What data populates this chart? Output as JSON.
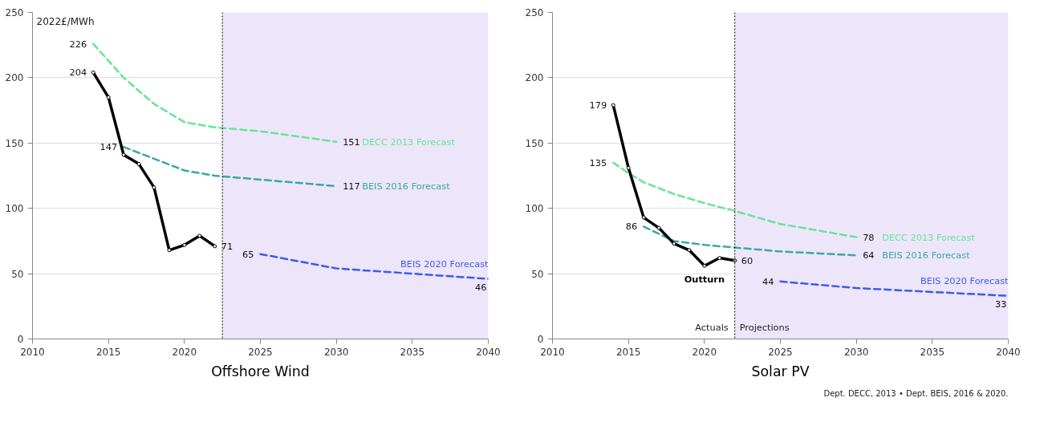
{
  "chart_data": [
    {
      "type": "line",
      "title": "Offshore Wind",
      "ylabel": "2022£/MWh",
      "xlim": [
        2010,
        2040
      ],
      "xticks": [
        2010,
        2015,
        2020,
        2025,
        2030,
        2035,
        2040
      ],
      "ylim": [
        0,
        250
      ],
      "yticks": [
        0,
        50,
        100,
        150,
        200,
        250
      ],
      "grid": "y",
      "series": [
        {
          "name": "DECC 2013 Forecast",
          "color": "#66e597",
          "line_style": "dashed",
          "marker": "none",
          "x": [
            2014,
            2016,
            2018,
            2020,
            2022,
            2025,
            2030
          ],
          "values": [
            226,
            200,
            180,
            166,
            162,
            159,
            151
          ],
          "value_labels": [
            "226",
            null,
            null,
            null,
            null,
            null,
            "151"
          ]
        },
        {
          "name": "BEIS 2016 Forecast",
          "color": "#38a8a8",
          "line_style": "dashed",
          "marker": "none",
          "x": [
            2016,
            2018,
            2020,
            2022,
            2025,
            2030
          ],
          "values": [
            147,
            138,
            129,
            125,
            122,
            117
          ],
          "value_labels": [
            "147",
            null,
            null,
            null,
            null,
            "117"
          ]
        },
        {
          "name": "BEIS 2020 Forecast",
          "color": "#3a5cf0",
          "line_style": "dashed",
          "marker": "none",
          "x": [
            2025,
            2030,
            2035,
            2040
          ],
          "values": [
            65,
            54,
            50,
            46
          ],
          "value_labels": [
            "65",
            null,
            null,
            "46"
          ]
        },
        {
          "color": "#000000",
          "line_style": "solid",
          "marker": "circle",
          "x": [
            2014,
            2015,
            2016,
            2017,
            2018,
            2019,
            2020,
            2021,
            2022
          ],
          "values": [
            204,
            185,
            141,
            134,
            116,
            68,
            72,
            79,
            71
          ],
          "value_labels": [
            "204",
            null,
            null,
            null,
            null,
            null,
            null,
            null,
            "71"
          ]
        }
      ],
      "bands": [
        {
          "axis": "x",
          "from": 2022.5,
          "to": 2040,
          "color": "#ede5fa"
        }
      ],
      "ref_lines": [
        {
          "axis": "x",
          "value": 2022.5,
          "color": "#000000",
          "line_style": "dotted"
        }
      ]
    },
    {
      "type": "line",
      "title": "Solar PV",
      "xlim": [
        2010,
        2040
      ],
      "xticks": [
        2010,
        2015,
        2020,
        2025,
        2030,
        2035,
        2040
      ],
      "ylim": [
        0,
        250
      ],
      "yticks": [
        0,
        50,
        100,
        150,
        200,
        250
      ],
      "grid": "y",
      "series": [
        {
          "name": "DECC 2013 Forecast",
          "color": "#66e597",
          "line_style": "dashed",
          "marker": "none",
          "x": [
            2014,
            2015,
            2016,
            2018,
            2020,
            2022,
            2025,
            2030
          ],
          "values": [
            135,
            127,
            120,
            111,
            104,
            98,
            88,
            78
          ],
          "value_labels": [
            "135",
            null,
            null,
            null,
            null,
            null,
            null,
            "78"
          ]
        },
        {
          "name": "BEIS 2016 Forecast",
          "color": "#38a8a8",
          "line_style": "dashed",
          "marker": "none",
          "x": [
            2016,
            2018,
            2020,
            2022,
            2025,
            2030
          ],
          "values": [
            86,
            75,
            72,
            70,
            67,
            64
          ],
          "value_labels": [
            "86",
            null,
            null,
            null,
            null,
            "64"
          ]
        },
        {
          "name": "BEIS 2020 Forecast",
          "color": "#3a5cf0",
          "line_style": "dashed",
          "marker": "none",
          "x": [
            2025,
            2030,
            2035,
            2040
          ],
          "values": [
            44,
            39,
            36,
            33
          ],
          "value_labels": [
            "44",
            null,
            null,
            "33"
          ]
        },
        {
          "name": "Outturn",
          "color": "#000000",
          "line_style": "solid",
          "marker": "circle",
          "x": [
            2014,
            2015,
            2016,
            2017,
            2018,
            2019,
            2020,
            2021,
            2022
          ],
          "values": [
            179,
            131,
            93,
            85,
            73,
            68,
            56,
            62,
            60
          ],
          "value_labels": [
            "179",
            null,
            null,
            null,
            null,
            null,
            null,
            null,
            "60"
          ]
        }
      ],
      "bands": [
        {
          "axis": "x",
          "from": 2022,
          "to": 2040,
          "color": "#ede5fa"
        }
      ],
      "ref_lines": [
        {
          "axis": "x",
          "value": 2022,
          "color": "#000000",
          "line_style": "dotted"
        }
      ],
      "annotations": [
        "Actuals",
        "Projections",
        "Dept. DECC, 2013 • Dept. BEIS, 2016 & 2020."
      ]
    }
  ]
}
